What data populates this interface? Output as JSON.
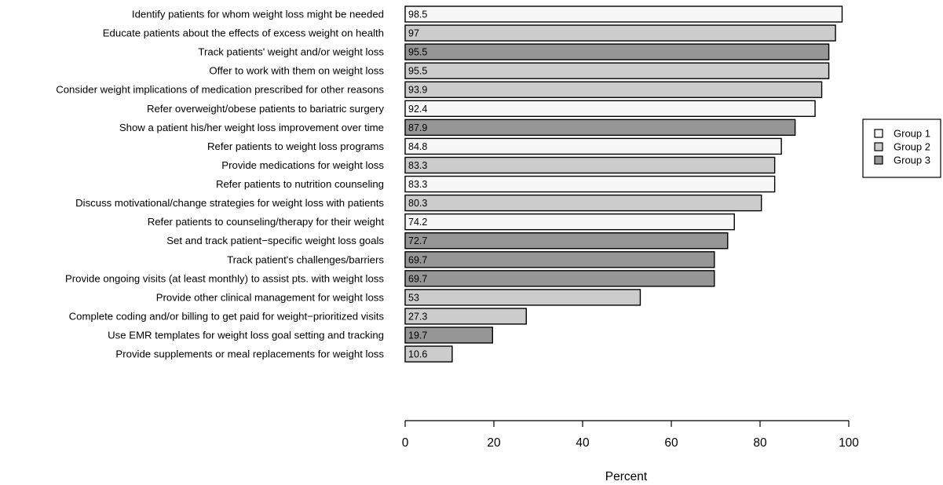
{
  "chart_data": {
    "type": "bar",
    "orientation": "horizontal",
    "title": "",
    "xlabel": "Percent",
    "ylabel": "",
    "xlim": [
      0,
      100
    ],
    "xticks": [
      "0",
      "20",
      "40",
      "60",
      "80",
      "100"
    ],
    "grid": false,
    "legend_position": "right",
    "groups": [
      {
        "name": "Group 1",
        "color": "#f7f7f7"
      },
      {
        "name": "Group 2",
        "color": "#cccccc"
      },
      {
        "name": "Group 3",
        "color": "#969696"
      }
    ],
    "bars": [
      {
        "label": "Identify patients for whom weight loss might be needed",
        "value": 98.5,
        "value_label": "98.5",
        "group": 0
      },
      {
        "label": "Educate patients about the effects of excess weight on health",
        "value": 97,
        "value_label": "97",
        "group": 1
      },
      {
        "label": "Track patients' weight and/or weight loss",
        "value": 95.5,
        "value_label": "95.5",
        "group": 2
      },
      {
        "label": "Offer to work with them on weight loss",
        "value": 95.5,
        "value_label": "95.5",
        "group": 1
      },
      {
        "label": "Consider weight implications of medication prescribed for other reasons",
        "value": 93.9,
        "value_label": "93.9",
        "group": 1
      },
      {
        "label": "Refer overweight/obese patients to bariatric surgery",
        "value": 92.4,
        "value_label": "92.4",
        "group": 0
      },
      {
        "label": "Show a patient his/her weight loss improvement over time",
        "value": 87.9,
        "value_label": "87.9",
        "group": 2
      },
      {
        "label": "Refer patients to weight loss programs",
        "value": 84.8,
        "value_label": "84.8",
        "group": 0
      },
      {
        "label": "Provide medications for weight loss",
        "value": 83.3,
        "value_label": "83.3",
        "group": 1
      },
      {
        "label": "Refer patients to nutrition counseling",
        "value": 83.3,
        "value_label": "83.3",
        "group": 0
      },
      {
        "label": "Discuss motivational/change strategies for weight loss with patients",
        "value": 80.3,
        "value_label": "80.3",
        "group": 1
      },
      {
        "label": "Refer patients to counseling/therapy for their weight",
        "value": 74.2,
        "value_label": "74.2",
        "group": 0
      },
      {
        "label": "Set and track patient−specific weight loss goals",
        "value": 72.7,
        "value_label": "72.7",
        "group": 2
      },
      {
        "label": "Track patient's challenges/barriers",
        "value": 69.7,
        "value_label": "69.7",
        "group": 2
      },
      {
        "label": "Provide ongoing visits (at least monthly) to assist pts. with weight loss",
        "value": 69.7,
        "value_label": "69.7",
        "group": 2
      },
      {
        "label": "Provide other clinical management for weight loss",
        "value": 53,
        "value_label": "53",
        "group": 1
      },
      {
        "label": "Complete coding and/or billing to get paid for weight−prioritized visits",
        "value": 27.3,
        "value_label": "27.3",
        "group": 1
      },
      {
        "label": "Use EMR templates for weight loss goal setting and tracking",
        "value": 19.7,
        "value_label": "19.7",
        "group": 2
      },
      {
        "label": "Provide supplements or meal replacements for weight loss",
        "value": 10.6,
        "value_label": "10.6",
        "group": 1
      }
    ]
  }
}
